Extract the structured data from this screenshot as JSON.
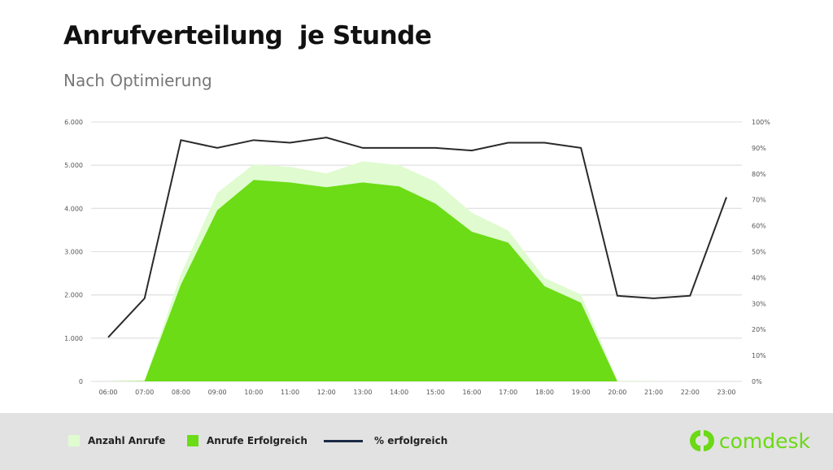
{
  "title": "Anrufverteilung  je Stunde",
  "subtitle": "Nach Optimierung",
  "brand": {
    "name": "comdesk",
    "color": "#6bd916"
  },
  "chart_data": {
    "type": "area",
    "categories": [
      "06:00",
      "07:00",
      "08:00",
      "09:00",
      "10:00",
      "11:00",
      "12:00",
      "13:00",
      "14:00",
      "15:00",
      "16:00",
      "17:00",
      "18:00",
      "19:00",
      "20:00",
      "21:00",
      "22:00",
      "23:00"
    ],
    "y_left": {
      "range": [
        0,
        6000
      ],
      "ticks": [
        "0",
        "1.000",
        "2.000",
        "3.000",
        "4.000",
        "5.000",
        "6.000"
      ]
    },
    "y_right": {
      "range": [
        0,
        100
      ],
      "ticks": [
        "0%",
        "10%",
        "20%",
        "30%",
        "40%",
        "50%",
        "60%",
        "70%",
        "80%",
        "90%",
        "100%"
      ]
    },
    "grid": true,
    "legend_position": "bottom",
    "series": [
      {
        "name": "Anzahl Anrufe",
        "type": "area",
        "axis": "left",
        "color": "#e0fbd0",
        "values": [
          0,
          10,
          2480,
          4360,
          5020,
          4960,
          4810,
          5090,
          5000,
          4620,
          3900,
          3490,
          2390,
          2010,
          20,
          5,
          0,
          0
        ]
      },
      {
        "name": "Anrufe Erfolgreich",
        "type": "area",
        "axis": "left",
        "color": "#6bdc16",
        "values": [
          0,
          10,
          2240,
          3960,
          4660,
          4600,
          4490,
          4600,
          4510,
          4110,
          3460,
          3210,
          2200,
          1820,
          0,
          0,
          0,
          0
        ]
      },
      {
        "name": "% erfolgreich",
        "type": "line",
        "axis": "right",
        "color": "#1b2a44",
        "values": [
          17,
          32,
          93,
          90,
          93,
          92,
          94,
          90,
          90,
          90,
          89,
          92,
          92,
          90,
          33,
          32,
          33,
          71
        ]
      }
    ]
  }
}
